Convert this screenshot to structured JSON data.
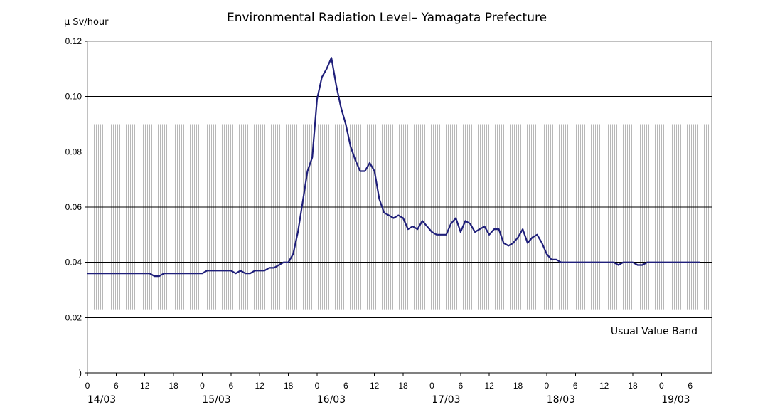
{
  "chart_data": {
    "type": "line",
    "title": "Environmental Radiation Level– Yamagata Prefecture",
    "ylabel": "μ Sv/hour",
    "xlabel": "",
    "ylim": [
      0,
      0.12
    ],
    "y_ticks": [
      {
        "value": 0.0,
        "label": ")"
      },
      {
        "value": 0.02,
        "label": "0.02"
      },
      {
        "value": 0.04,
        "label": "0.04"
      },
      {
        "value": 0.06,
        "label": "0.06"
      },
      {
        "value": 0.08,
        "label": "0.08"
      },
      {
        "value": 0.1,
        "label": "0.10"
      },
      {
        "value": 0.12,
        "label": "0.12"
      }
    ],
    "gridlines": [
      0.02,
      0.04,
      0.06,
      0.08,
      0.1
    ],
    "x_range_hours": [
      0,
      130.5
    ],
    "hour_ticks": [
      {
        "h": 0,
        "label": "0"
      },
      {
        "h": 6,
        "label": "6"
      },
      {
        "h": 12,
        "label": "12"
      },
      {
        "h": 18,
        "label": "18"
      },
      {
        "h": 24,
        "label": "0"
      },
      {
        "h": 30,
        "label": "6"
      },
      {
        "h": 36,
        "label": "12"
      },
      {
        "h": 42,
        "label": "18"
      },
      {
        "h": 48,
        "label": "0"
      },
      {
        "h": 54,
        "label": "6"
      },
      {
        "h": 60,
        "label": "12"
      },
      {
        "h": 66,
        "label": "18"
      },
      {
        "h": 72,
        "label": "0"
      },
      {
        "h": 78,
        "label": "6"
      },
      {
        "h": 84,
        "label": "12"
      },
      {
        "h": 90,
        "label": "18"
      },
      {
        "h": 96,
        "label": "0"
      },
      {
        "h": 102,
        "label": "6"
      },
      {
        "h": 108,
        "label": "12"
      },
      {
        "h": 114,
        "label": "18"
      },
      {
        "h": 120,
        "label": "0"
      },
      {
        "h": 126,
        "label": "6"
      }
    ],
    "date_labels": [
      {
        "h": 0,
        "label": "14/03"
      },
      {
        "h": 24,
        "label": "15/03"
      },
      {
        "h": 48,
        "label": "16/03"
      },
      {
        "h": 72,
        "label": "17/03"
      },
      {
        "h": 96,
        "label": "18/03"
      },
      {
        "h": 120,
        "label": "19/03"
      }
    ],
    "usual_band": {
      "low": 0.023,
      "high": 0.09,
      "label": "Usual Value Band"
    },
    "series": [
      {
        "name": "Yamagata Prefecture",
        "color": "#1f1f7a",
        "x": [
          0,
          1,
          2,
          3,
          4,
          5,
          6,
          7,
          8,
          9,
          10,
          11,
          12,
          13,
          14,
          15,
          16,
          17,
          18,
          19,
          20,
          21,
          22,
          23,
          24,
          25,
          26,
          27,
          28,
          29,
          30,
          31,
          32,
          33,
          34,
          35,
          36,
          37,
          38,
          39,
          40,
          41,
          42,
          43,
          44,
          45,
          46,
          47,
          48,
          49,
          50,
          51,
          52,
          53,
          54,
          55,
          56,
          57,
          58,
          59,
          60,
          61,
          62,
          63,
          64,
          65,
          66,
          67,
          68,
          69,
          70,
          71,
          72,
          73,
          74,
          75,
          76,
          77,
          78,
          79,
          80,
          81,
          82,
          83,
          84,
          85,
          86,
          87,
          88,
          89,
          90,
          91,
          92,
          93,
          94,
          95,
          96,
          97,
          98,
          99,
          100,
          101,
          102,
          103,
          104,
          105,
          106,
          107,
          108,
          109,
          110,
          111,
          112,
          113,
          114,
          115,
          116,
          117,
          118,
          119,
          120,
          121,
          122,
          123,
          124,
          125,
          126,
          127,
          128
        ],
        "y": [
          0.036,
          0.036,
          0.036,
          0.036,
          0.036,
          0.036,
          0.036,
          0.036,
          0.036,
          0.036,
          0.036,
          0.036,
          0.036,
          0.036,
          0.035,
          0.035,
          0.036,
          0.036,
          0.036,
          0.036,
          0.036,
          0.036,
          0.036,
          0.036,
          0.036,
          0.037,
          0.037,
          0.037,
          0.037,
          0.037,
          0.037,
          0.036,
          0.037,
          0.036,
          0.036,
          0.037,
          0.037,
          0.037,
          0.038,
          0.038,
          0.039,
          0.04,
          0.04,
          0.043,
          0.051,
          0.062,
          0.073,
          0.078,
          0.099,
          0.107,
          0.11,
          0.114,
          0.104,
          0.096,
          0.09,
          0.082,
          0.077,
          0.073,
          0.073,
          0.076,
          0.073,
          0.063,
          0.058,
          0.057,
          0.056,
          0.057,
          0.056,
          0.052,
          0.053,
          0.052,
          0.055,
          0.053,
          0.051,
          0.05,
          0.05,
          0.05,
          0.054,
          0.056,
          0.051,
          0.055,
          0.054,
          0.051,
          0.052,
          0.053,
          0.05,
          0.052,
          0.052,
          0.047,
          0.046,
          0.047,
          0.049,
          0.052,
          0.047,
          0.049,
          0.05,
          0.047,
          0.043,
          0.041,
          0.041,
          0.04,
          0.04,
          0.04,
          0.04,
          0.04,
          0.04,
          0.04,
          0.04,
          0.04,
          0.04,
          0.04,
          0.04,
          0.039,
          0.04,
          0.04,
          0.04,
          0.039,
          0.039,
          0.04,
          0.04,
          0.04,
          0.04,
          0.04,
          0.04,
          0.04,
          0.04,
          0.04,
          0.04,
          0.04,
          0.04
        ]
      }
    ]
  }
}
